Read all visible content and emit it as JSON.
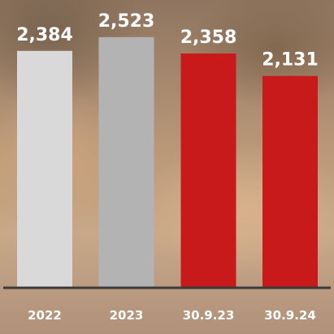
{
  "chart_data": {
    "type": "bar",
    "categories": [
      "2022",
      "2023",
      "30.9.23",
      "30.9.24"
    ],
    "values": [
      2384,
      2523,
      2358,
      2131
    ],
    "value_labels": [
      "2,384",
      "2,523",
      "2,358",
      "2,131"
    ],
    "colors": [
      "#d9d9d9",
      "#b3b3b3",
      "#c81a1a",
      "#c81a1a"
    ],
    "axis_color": "#3a3a3a",
    "ylim": [
      0,
      2800
    ],
    "grid": false,
    "legend": "none"
  }
}
